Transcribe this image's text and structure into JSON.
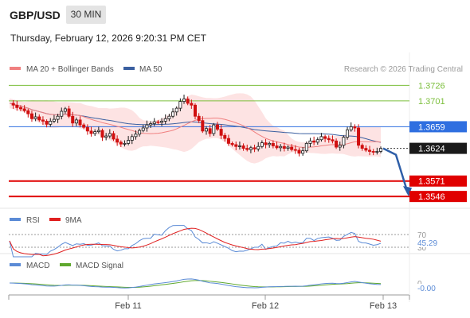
{
  "header": {
    "pair": "GBP/USD",
    "timeframe": "30 MIN",
    "datetime": "Thursday, February 12, 2026 9:20:31 PM CET"
  },
  "legend": {
    "ma20": "MA 20 + Bollinger Bands",
    "ma50": "MA 50",
    "credit": "Research © 2026 Trading Central"
  },
  "rsi_legend": {
    "rsi": "RSI",
    "ma": "9MA"
  },
  "macd_legend": {
    "macd": "MACD",
    "signal": "MACD Signal"
  },
  "colors": {
    "ma20": "#f08080",
    "ma50": "#3a5fa0",
    "band_fill": "#fde3e3",
    "level_green": "#7cbf3c",
    "level_blue": "#2f6fe0",
    "level_red": "#e00000",
    "candle_up": "#1a1a1a",
    "candle_down": "#d01010",
    "rsi": "#5b8bd6",
    "rsi_ma": "#e02020",
    "macd": "#5b8bd6",
    "macd_signal": "#5fa82e",
    "arrow": "#2e5ea8"
  },
  "chart_data": {
    "type": "candlestick",
    "y_range": [
      1.3532,
      1.3742
    ],
    "x_ticks": [
      "Feb 11",
      "Feb 12",
      "Feb 13"
    ],
    "levels": [
      {
        "label": "1.3726",
        "value": 1.3726,
        "kind": "resistance"
      },
      {
        "label": "1.3701",
        "value": 1.3701,
        "kind": "resistance"
      },
      {
        "label": "1.3659",
        "value": 1.3659,
        "kind": "pivot"
      },
      {
        "label": "1.3624",
        "value": 1.3624,
        "kind": "last"
      },
      {
        "label": "1.3571",
        "value": 1.3571,
        "kind": "support"
      },
      {
        "label": "1.3546",
        "value": 1.3546,
        "kind": "support"
      }
    ],
    "close_path": [
      1.3697,
      1.3694,
      1.369,
      1.3688,
      1.3685,
      1.368,
      1.3672,
      1.3675,
      1.367,
      1.3668,
      1.3663,
      1.3668,
      1.3671,
      1.3676,
      1.3684,
      1.3688,
      1.3676,
      1.3665,
      1.367,
      1.3662,
      1.3658,
      1.3652,
      1.3648,
      1.3651,
      1.3653,
      1.3642,
      1.3644,
      1.3648,
      1.3639,
      1.3634,
      1.3631,
      1.3632,
      1.3637,
      1.3643,
      1.3647,
      1.3653,
      1.3657,
      1.3662,
      1.3664,
      1.3667,
      1.3666,
      1.3668,
      1.3672,
      1.3676,
      1.3683,
      1.3689,
      1.37,
      1.3704,
      1.3697,
      1.3694,
      1.3676,
      1.3669,
      1.3652,
      1.3656,
      1.3648,
      1.3662,
      1.3655,
      1.3645,
      1.364,
      1.3632,
      1.363,
      1.3627,
      1.3628,
      1.3624,
      1.3622,
      1.3625,
      1.3623,
      1.3627,
      1.3633,
      1.363,
      1.3632,
      1.3628,
      1.3625,
      1.3627,
      1.3624,
      1.3626,
      1.3622,
      1.3621,
      1.3616,
      1.362,
      1.3632,
      1.3636,
      1.3634,
      1.3638,
      1.3643,
      1.364,
      1.3638,
      1.3636,
      1.3626,
      1.3629,
      1.3642,
      1.3654,
      1.3659,
      1.3657,
      1.3629,
      1.3624,
      1.3621,
      1.3619,
      1.3618,
      1.3619,
      1.3624
    ],
    "rsi": {
      "levels": [
        "70",
        "45.29",
        "30"
      ],
      "current": 45.29
    },
    "macd": {
      "levels": [
        "0",
        "-0.00"
      ],
      "current": "-0.00"
    }
  }
}
